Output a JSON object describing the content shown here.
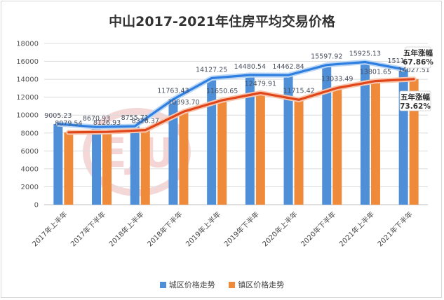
{
  "chart_data": {
    "type": "bar",
    "title": "中山2017-2021年住房平均交易价格",
    "categories": [
      "2017年上半年",
      "2017年下半年",
      "2018年上半年",
      "2018年下半年",
      "2019年上半年",
      "2019年下半年",
      "2020年上半年",
      "2020年下半年",
      "2021年上半年",
      "2021年下半年"
    ],
    "series": [
      {
        "name": "城区价格走势",
        "color": "#4e8fd8",
        "values": [
          9005.23,
          8670.93,
          8755.71,
          11763.43,
          14127.25,
          14480.54,
          14462.84,
          15597.92,
          15925.13,
          15116.6
        ]
      },
      {
        "name": "镇区价格走势",
        "color": "#ee8a3a",
        "values": [
          8079.54,
          8126.93,
          8326.37,
          10393.7,
          11650.65,
          12479.91,
          11715.42,
          13033.49,
          13801.65,
          14027.51
        ]
      }
    ],
    "data_labels": {
      "series_0": [
        "9005.23",
        "8670.93",
        "8755.71",
        "11763.43",
        "14127.25",
        "14480.54",
        "14462.84",
        "15597.92",
        "15925.13",
        "15116.60"
      ],
      "series_1": [
        "8079.54",
        "8126.93",
        "8326.37",
        "10393.70",
        "11650.65",
        "12479.91",
        "11715.42",
        "13033.49",
        "13801.65",
        "14027.51"
      ]
    },
    "overlay_lines": true,
    "ylim": [
      0,
      18000
    ],
    "yticks": [
      "0",
      "2000",
      "4000",
      "6000",
      "8000",
      "10000",
      "12000",
      "14000",
      "16000",
      "18000"
    ],
    "grid": true,
    "legend_position": "bottom",
    "annotations": [
      {
        "series": 0,
        "line1": "五年涨幅",
        "line2": "67.86%"
      },
      {
        "series": 1,
        "line1": "五年涨幅",
        "line2": "73.62%"
      }
    ]
  }
}
